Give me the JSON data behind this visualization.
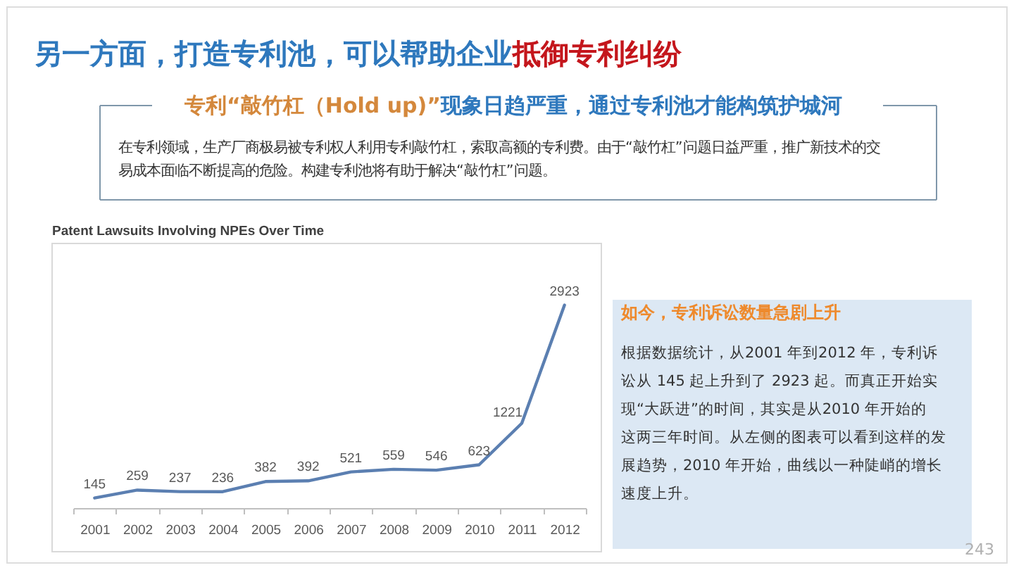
{
  "chart_data": {
    "type": "line",
    "title": "Patent Lawsuits Involving NPEs Over Time",
    "categories": [
      "2001",
      "2002",
      "2003",
      "2004",
      "2005",
      "2006",
      "2007",
      "2008",
      "2009",
      "2010",
      "2011",
      "2012"
    ],
    "series": [
      {
        "color": "#5b7fb1",
        "values": [
          145,
          259,
          237,
          236,
          382,
          392,
          521,
          559,
          546,
          623,
          1221,
          2923
        ]
      }
    ],
    "data_labels": true,
    "tick_labels": "x",
    "annotations": [
      "另一方面，打造专利池，可以帮助企业",
      "抵御专利纠纷",
      "专利“敲竹杠（Hold up)”",
      "现象日趋严重，通过专利池才能构筑护城河",
      "在专利领域，生产厂商极易被专利权人利用专利敲竹杠，索取高额的专利费。由于“敲竹杠”问题日益严重，推广新技术的交易成本面临不断提高的危险。构建专利池将有助于解决“敲竹杠”问题。",
      "如今，专利诉讼数量急剧上升",
      "根据数据统计，从2001 年到2012 年，专利诉讼从 145 起上升到了 2923 起。而真正开始实现“大跃进”的时间，其实是从2010 年开始的这两三年时间。从左侧的图表可以看到这样的发展趋势，2010 年开始，曲线以一种陡峭的增长速度上升。",
      "243"
    ]
  }
}
